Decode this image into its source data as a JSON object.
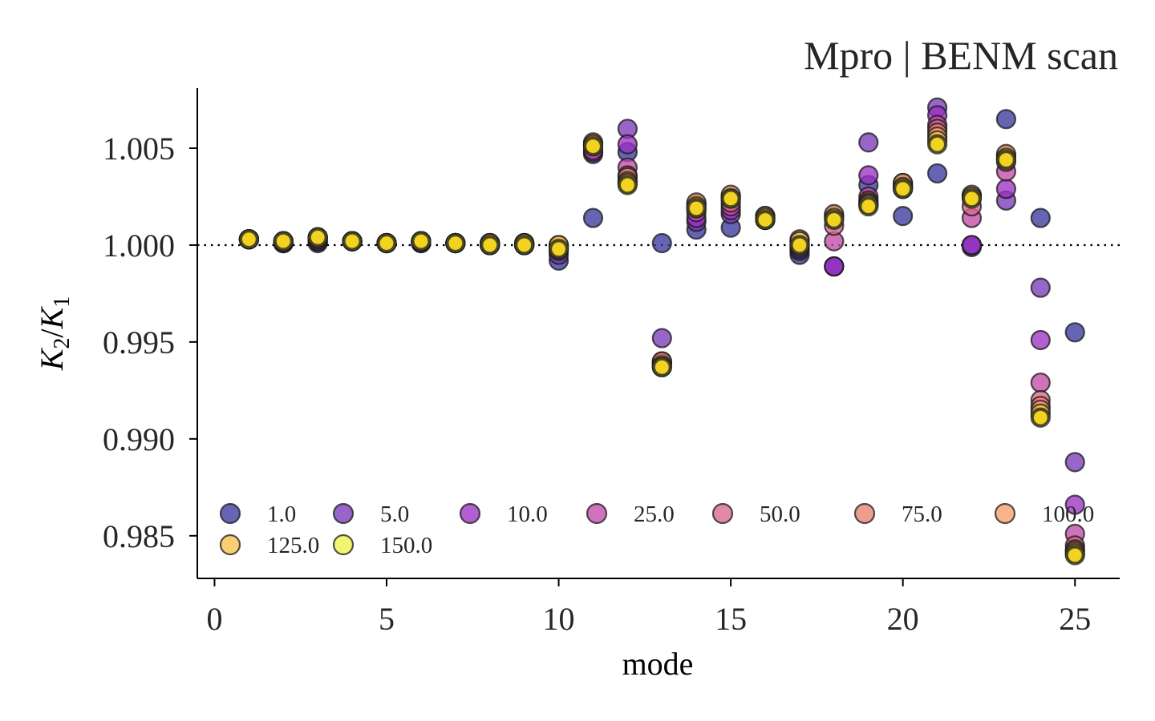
{
  "chart_data": {
    "type": "scatter",
    "title": "Mpro | BENM scan",
    "xlabel": "mode",
    "ylabel": "K2/K1",
    "ylabel_parts": {
      "main": "K",
      "sub1": "2",
      "slash": "/",
      "main2": "K",
      "sub2": "1"
    },
    "xlim": [
      -0.5,
      26.3
    ],
    "ylim": [
      0.9828,
      1.0081
    ],
    "xticks": [
      0,
      5,
      10,
      15,
      20,
      25
    ],
    "yticks": [
      0.985,
      0.99,
      0.995,
      1.0,
      1.005
    ],
    "ytick_labels": [
      "0.985",
      "0.990",
      "0.995",
      "1.000",
      "1.005"
    ],
    "reference_line": {
      "y": 1.0,
      "style": "dotted",
      "color": "#000000"
    },
    "grid": false,
    "legend": {
      "position": "lower-left",
      "columns": 7
    },
    "x": [
      1,
      2,
      3,
      4,
      5,
      6,
      7,
      8,
      9,
      10,
      11,
      12,
      13,
      14,
      15,
      16,
      17,
      18,
      19,
      20,
      21,
      22,
      23,
      24,
      25
    ],
    "series": [
      {
        "name": "1.0",
        "color": "#3a3a9e",
        "values": [
          1.0003,
          1.0001,
          1.0001,
          1.0002,
          1.0001,
          1.0001,
          1.0001,
          1.0,
          1.0,
          0.9992,
          1.0014,
          1.0048,
          1.0001,
          1.0008,
          1.0009,
          1.0013,
          0.9995,
          0.9989,
          1.0031,
          1.0015,
          1.0037,
          0.9999,
          1.0065,
          1.0014,
          0.9955
        ]
      },
      {
        "name": "5.0",
        "color": "#7b3ab8",
        "values": [
          1.0003,
          1.0001,
          1.0002,
          1.0002,
          1.0001,
          1.0001,
          1.0001,
          1.0,
          1.0,
          0.9995,
          1.0047,
          1.006,
          0.9952,
          1.0012,
          1.0016,
          1.0013,
          0.9997,
          0.9989,
          1.0053,
          1.0029,
          1.0071,
          1.0,
          1.0023,
          0.9978,
          0.9888
        ]
      },
      {
        "name": "10.0",
        "color": "#9b32c4",
        "values": [
          1.0003,
          1.0001,
          1.0002,
          1.0002,
          1.0001,
          1.0002,
          1.0001,
          1.0,
          1.0,
          0.9997,
          1.0048,
          1.0052,
          0.994,
          1.0014,
          1.0018,
          1.0013,
          0.9998,
          0.9989,
          1.0036,
          1.003,
          1.0067,
          1.0,
          1.0029,
          0.9951,
          0.9866
        ]
      },
      {
        "name": "25.0",
        "color": "#c34ca6",
        "values": [
          1.0003,
          1.0001,
          1.0003,
          1.0002,
          1.0001,
          1.0002,
          1.0001,
          1.0,
          1.0,
          0.9998,
          1.0049,
          1.004,
          0.9939,
          1.0017,
          1.002,
          1.0014,
          0.9999,
          1.0002,
          1.0025,
          1.003,
          1.0062,
          1.0014,
          1.0038,
          0.9929,
          0.9851
        ]
      },
      {
        "name": "50.0",
        "color": "#d9698a",
        "values": [
          1.0003,
          1.0002,
          1.0003,
          1.0002,
          1.0001,
          1.0002,
          1.0001,
          1.0001,
          1.0001,
          0.9999,
          1.0051,
          1.0036,
          0.9939,
          1.0019,
          1.0022,
          1.0014,
          1.0,
          1.001,
          1.0023,
          1.0031,
          1.006,
          1.002,
          1.0043,
          0.992,
          0.9845
        ]
      },
      {
        "name": "75.0",
        "color": "#e8806f",
        "values": [
          1.0003,
          1.0002,
          1.0004,
          1.0002,
          1.0001,
          1.0002,
          1.0001,
          1.0001,
          1.0001,
          0.9999,
          1.0052,
          1.0035,
          0.994,
          1.0021,
          1.0025,
          1.0015,
          1.0002,
          1.0015,
          1.0022,
          1.0032,
          1.0058,
          1.0025,
          1.0046,
          0.9917,
          0.9843
        ]
      },
      {
        "name": "100.0",
        "color": "#f4a06a",
        "values": [
          1.0003,
          1.0002,
          1.0004,
          1.0002,
          1.0001,
          1.0002,
          1.0001,
          1.0001,
          1.0001,
          1.0,
          1.0053,
          1.0033,
          0.9938,
          1.0022,
          1.0026,
          1.0015,
          1.0003,
          1.0016,
          1.0021,
          1.0032,
          1.0056,
          1.0026,
          1.0047,
          0.9915,
          0.9842
        ]
      },
      {
        "name": "125.0",
        "color": "#f8c24a",
        "values": [
          1.0003,
          1.0002,
          1.0004,
          1.0002,
          1.0001,
          1.0002,
          1.0001,
          1.0001,
          1.0001,
          1.0,
          1.0052,
          1.0032,
          0.9937,
          1.002,
          1.0024,
          1.0014,
          1.0002,
          1.0014,
          1.0021,
          1.003,
          1.0054,
          1.0025,
          1.0045,
          0.9913,
          0.9841
        ]
      },
      {
        "name": "150.0",
        "color": "#eef24a",
        "values": [
          1.0003,
          1.0002,
          1.0004,
          1.0002,
          1.0001,
          1.0002,
          1.0001,
          1.0,
          1.0,
          0.9998,
          1.0051,
          1.0031,
          0.9937,
          1.0019,
          1.0024,
          1.0013,
          1.0,
          1.0013,
          1.002,
          1.0029,
          1.0052,
          1.0024,
          1.0044,
          0.9911,
          0.984
        ]
      }
    ],
    "overlay_color": "#f0d21e"
  }
}
